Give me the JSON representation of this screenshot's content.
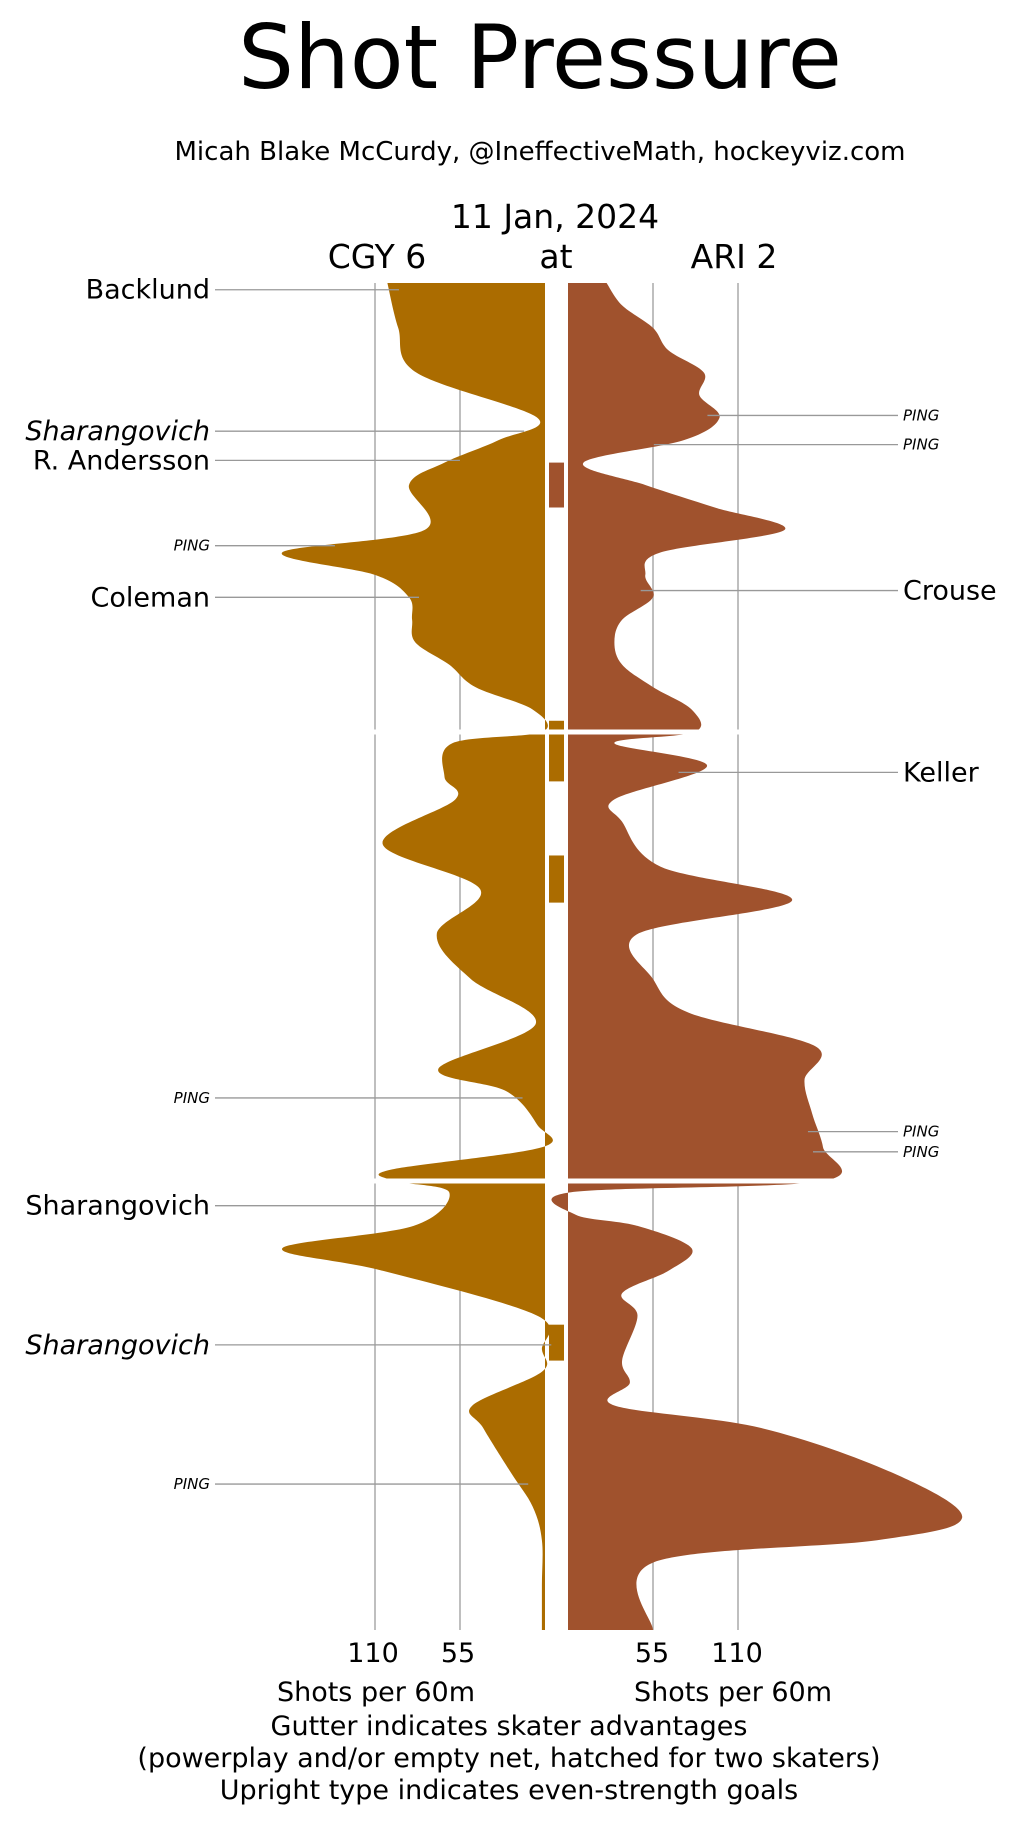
{
  "chart_data": {
    "type": "area",
    "title": "Shot Pressure",
    "subtitle": "Micah Blake McCurdy, @IneffectiveMath, hockeyviz.com",
    "date": "11 Jan, 2024",
    "home_label": "CGY 6",
    "at_label": "at",
    "away_label": "ARI 2",
    "periods": 3,
    "period_length_min": 20,
    "x_ticks": [
      55,
      110
    ],
    "x_ticks_left_labels": [
      "110",
      "55"
    ],
    "x_ticks_right_labels": [
      "55",
      "110"
    ],
    "xlabel_left": "Shots per 60m",
    "xlabel_right": "Shots per 60m",
    "footnotes": [
      "Gutter indicates skater advantages",
      "(powerplay and/or empty net, hatched for two skaters)",
      "Upright type indicates even-strength goals"
    ],
    "colors": {
      "cgy": "#ab6c00",
      "ari": "#a0522d",
      "grid": "#aaaaaa",
      "leader": "#999999"
    },
    "series": [
      {
        "name": "CGY 6",
        "side": "left",
        "color": "#ab6c00",
        "t": [
          0,
          2,
          4,
          6,
          7,
          8,
          9,
          11,
          12,
          13,
          14,
          15,
          16,
          17,
          18,
          19,
          20,
          20.5,
          22,
          23,
          25,
          27,
          29,
          31,
          33,
          35,
          36,
          37.5,
          38.5,
          39.5,
          40,
          40.5,
          42,
          43,
          44,
          46,
          47.5,
          48.5,
          50,
          51,
          53,
          54.5,
          56,
          58,
          60
        ],
        "values": [
          102,
          95,
          83,
          5,
          30,
          65,
          88,
          78,
          170,
          110,
          88,
          86,
          84,
          62,
          45,
          8,
          2,
          60,
          65,
          58,
          105,
          42,
          70,
          48,
          6,
          69,
          25,
          5,
          2,
          100,
          97,
          62,
          85,
          170,
          105,
          5,
          2,
          2,
          47,
          40,
          22,
          8,
          2,
          2,
          2
        ]
      },
      {
        "name": "ARI 2",
        "side": "right",
        "color": "#a0522d",
        "t": [
          0,
          1,
          2,
          3,
          4,
          5,
          6,
          7,
          8,
          9,
          10,
          11,
          12,
          13,
          14,
          15,
          16,
          17,
          18,
          19,
          20,
          20.5,
          21.5,
          23,
          24,
          26,
          27.5,
          29,
          31,
          32.5,
          34,
          35.5,
          37,
          38.5,
          40,
          40.5,
          41.5,
          42,
          43,
          44,
          45,
          46,
          48,
          49,
          50,
          51,
          53,
          55,
          56,
          57,
          60
        ],
        "values": [
          25,
          35,
          55,
          65,
          88,
          85,
          98,
          75,
          10,
          50,
          95,
          140,
          60,
          50,
          55,
          35,
          30,
          35,
          55,
          80,
          82,
          30,
          90,
          30,
          35,
          60,
          145,
          45,
          55,
          78,
          160,
          153,
          158,
          165,
          165,
          2,
          5,
          45,
          80,
          65,
          35,
          45,
          35,
          40,
          30,
          125,
          210,
          255,
          200,
          55,
          55
        ]
      }
    ],
    "gutter_bars": [
      {
        "team": "ARI 2",
        "start": 8.0,
        "end": 10.0
      },
      {
        "team": "CGY 6",
        "start": 19.5,
        "end": 22.2
      },
      {
        "team": "CGY 6",
        "start": 25.5,
        "end": 27.6
      },
      {
        "team": "CGY 6",
        "start": 46.4,
        "end": 48.0
      }
    ],
    "goals": [
      {
        "team": "CGY 6",
        "t": 0.3,
        "label": "Backlund",
        "style": "upright"
      },
      {
        "team": "CGY 6",
        "t": 6.6,
        "label": "Sharangovich",
        "style": "italic"
      },
      {
        "team": "CGY 6",
        "t": 7.9,
        "label": "R. Andersson",
        "style": "upright"
      },
      {
        "team": "CGY 6",
        "t": 11.7,
        "label": "PING",
        "style": "ping"
      },
      {
        "team": "CGY 6",
        "t": 14.0,
        "label": "Coleman",
        "style": "upright"
      },
      {
        "team": "CGY 6",
        "t": 36.3,
        "label": "PING",
        "style": "ping"
      },
      {
        "team": "CGY 6",
        "t": 41.1,
        "label": "Sharangovich",
        "style": "upright"
      },
      {
        "team": "CGY 6",
        "t": 47.3,
        "label": "Sharangovich",
        "style": "italic"
      },
      {
        "team": "CGY 6",
        "t": 53.5,
        "label": "PING",
        "style": "ping"
      },
      {
        "team": "ARI 2",
        "t": 5.9,
        "label": "PING",
        "style": "ping"
      },
      {
        "team": "ARI 2",
        "t": 7.2,
        "label": "PING",
        "style": "ping"
      },
      {
        "team": "ARI 2",
        "t": 13.7,
        "label": "Crouse",
        "style": "upright"
      },
      {
        "team": "ARI 2",
        "t": 21.8,
        "label": "Keller",
        "style": "upright"
      },
      {
        "team": "ARI 2",
        "t": 37.8,
        "label": "PING",
        "style": "ping"
      },
      {
        "team": "ARI 2",
        "t": 38.7,
        "label": "PING",
        "style": "ping"
      }
    ]
  }
}
